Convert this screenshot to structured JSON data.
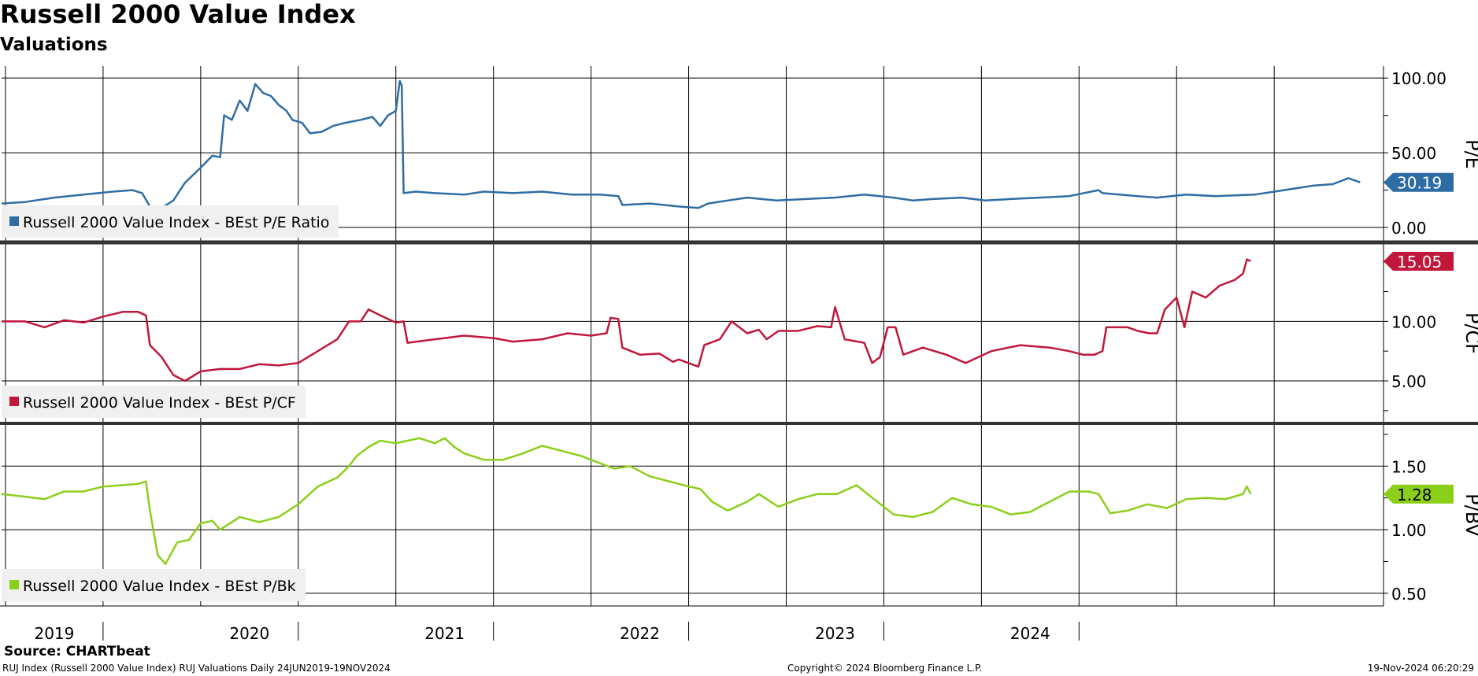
{
  "header": {
    "title": "Russell 2000 Value Index",
    "subtitle": "Valuations"
  },
  "footer": {
    "source": "Source: CHARTbeat",
    "description": "RUJ Index (Russell 2000 Value Index) RUJ Valuations  Daily 24JUN2019-19NOV2024",
    "copyright": "Copyright© 2024 Bloomberg Finance L.P.",
    "timestamp": "19-Nov-2024 06:20:29"
  },
  "chart_data": [
    {
      "type": "line",
      "ylabel": "P/E",
      "yticks": [
        0,
        50,
        100
      ],
      "tick_labels": [
        "0.00",
        "50.00",
        "100.00"
      ],
      "ylim": [
        -10,
        108
      ],
      "color": "#2e6da4",
      "last_value_label": "30.19",
      "last_value": 30.19,
      "series": [
        {
          "name": "Russell 2000 Value Index - BEst P/E Ratio",
          "points": [
            [
              2019.48,
              16
            ],
            [
              2019.6,
              17
            ],
            [
              2019.75,
              20
            ],
            [
              2019.9,
              22
            ],
            [
              2020.05,
              24
            ],
            [
              2020.15,
              25
            ],
            [
              2020.2,
              23
            ],
            [
              2020.24,
              14
            ],
            [
              2020.3,
              13
            ],
            [
              2020.36,
              18
            ],
            [
              2020.42,
              30
            ],
            [
              2020.5,
              40
            ],
            [
              2020.56,
              48
            ],
            [
              2020.6,
              47
            ],
            [
              2020.62,
              75
            ],
            [
              2020.66,
              72
            ],
            [
              2020.7,
              85
            ],
            [
              2020.74,
              78
            ],
            [
              2020.78,
              96
            ],
            [
              2020.82,
              90
            ],
            [
              2020.86,
              88
            ],
            [
              2020.9,
              82
            ],
            [
              2020.94,
              78
            ],
            [
              2020.97,
              72
            ],
            [
              2021.02,
              70
            ],
            [
              2021.06,
              63
            ],
            [
              2021.12,
              64
            ],
            [
              2021.18,
              68
            ],
            [
              2021.24,
              70
            ],
            [
              2021.32,
              72
            ],
            [
              2021.38,
              74
            ],
            [
              2021.42,
              68
            ],
            [
              2021.46,
              75
            ],
            [
              2021.5,
              78
            ],
            [
              2021.52,
              98
            ],
            [
              2021.53,
              95
            ],
            [
              2021.54,
              23
            ],
            [
              2021.6,
              24
            ],
            [
              2021.7,
              23
            ],
            [
              2021.85,
              22
            ],
            [
              2021.95,
              24
            ],
            [
              2022.1,
              23
            ],
            [
              2022.25,
              24
            ],
            [
              2022.4,
              22
            ],
            [
              2022.55,
              22
            ],
            [
              2022.64,
              21
            ],
            [
              2022.66,
              15
            ],
            [
              2022.8,
              16
            ],
            [
              2022.95,
              14
            ],
            [
              2023.05,
              13
            ],
            [
              2023.1,
              16
            ],
            [
              2023.2,
              18
            ],
            [
              2023.3,
              20
            ],
            [
              2023.45,
              18
            ],
            [
              2023.6,
              19
            ],
            [
              2023.75,
              20
            ],
            [
              2023.9,
              22
            ],
            [
              2024.05,
              20
            ],
            [
              2024.15,
              18
            ],
            [
              2024.25,
              19
            ],
            [
              2024.4,
              20
            ],
            [
              2024.52,
              18
            ],
            [
              2024.65,
              19
            ],
            [
              2024.8,
              20
            ],
            [
              2024.95,
              21
            ],
            [
              2025.1,
              25
            ],
            [
              2025.12,
              23
            ],
            [
              2025.3,
              21
            ],
            [
              2025.4,
              20
            ],
            [
              2025.55,
              22
            ],
            [
              2025.7,
              21
            ],
            [
              2025.9,
              22
            ],
            [
              2026.05,
              25
            ],
            [
              2026.2,
              28
            ],
            [
              2026.3,
              29
            ],
            [
              2026.38,
              33
            ],
            [
              2026.44,
              30.19
            ]
          ]
        }
      ]
    },
    {
      "type": "line",
      "ylabel": "P/CF",
      "yticks": [
        5,
        10
      ],
      "tick_labels": [
        "5.00",
        "10.00"
      ],
      "ylim": [
        1.5,
        16.5
      ],
      "color": "#c0173a",
      "last_value_label": "15.05",
      "last_value": 15.05,
      "series": [
        {
          "name": "Russell 2000 Value Index - BEst P/CF",
          "points": [
            [
              2019.48,
              10
            ],
            [
              2019.6,
              10
            ],
            [
              2019.7,
              9.5
            ],
            [
              2019.8,
              10.1
            ],
            [
              2019.9,
              9.9
            ],
            [
              2020.0,
              10.4
            ],
            [
              2020.1,
              10.8
            ],
            [
              2020.18,
              10.8
            ],
            [
              2020.22,
              10.5
            ],
            [
              2020.24,
              8
            ],
            [
              2020.3,
              7
            ],
            [
              2020.36,
              5.5
            ],
            [
              2020.42,
              5
            ],
            [
              2020.5,
              5.8
            ],
            [
              2020.6,
              6
            ],
            [
              2020.7,
              6
            ],
            [
              2020.8,
              6.4
            ],
            [
              2020.9,
              6.3
            ],
            [
              2021.0,
              6.5
            ],
            [
              2021.1,
              7.5
            ],
            [
              2021.2,
              8.5
            ],
            [
              2021.26,
              10
            ],
            [
              2021.32,
              10
            ],
            [
              2021.36,
              11
            ],
            [
              2021.42,
              10.5
            ],
            [
              2021.5,
              9.9
            ],
            [
              2021.54,
              10
            ],
            [
              2021.56,
              8.2
            ],
            [
              2021.7,
              8.5
            ],
            [
              2021.85,
              8.8
            ],
            [
              2022.0,
              8.6
            ],
            [
              2022.1,
              8.3
            ],
            [
              2022.25,
              8.5
            ],
            [
              2022.38,
              9
            ],
            [
              2022.5,
              8.8
            ],
            [
              2022.58,
              9
            ],
            [
              2022.6,
              10.3
            ],
            [
              2022.64,
              10.2
            ],
            [
              2022.66,
              7.8
            ],
            [
              2022.75,
              7.2
            ],
            [
              2022.85,
              7.3
            ],
            [
              2022.92,
              6.6
            ],
            [
              2022.95,
              6.8
            ],
            [
              2023.05,
              6.2
            ],
            [
              2023.08,
              8
            ],
            [
              2023.16,
              8.5
            ],
            [
              2023.22,
              10
            ],
            [
              2023.3,
              9
            ],
            [
              2023.36,
              9.3
            ],
            [
              2023.4,
              8.5
            ],
            [
              2023.46,
              9.2
            ],
            [
              2023.56,
              9.2
            ],
            [
              2023.66,
              9.6
            ],
            [
              2023.73,
              9.5
            ],
            [
              2023.75,
              11.2
            ],
            [
              2023.8,
              8.5
            ],
            [
              2023.9,
              8.2
            ],
            [
              2023.94,
              6.5
            ],
            [
              2023.98,
              7
            ],
            [
              2024.02,
              9.5
            ],
            [
              2024.06,
              9.5
            ],
            [
              2024.1,
              7.2
            ],
            [
              2024.2,
              7.8
            ],
            [
              2024.32,
              7.2
            ],
            [
              2024.42,
              6.5
            ],
            [
              2024.55,
              7.5
            ],
            [
              2024.7,
              8
            ],
            [
              2024.85,
              7.8
            ],
            [
              2024.95,
              7.5
            ],
            [
              2025.02,
              7.2
            ],
            [
              2025.08,
              7.2
            ],
            [
              2025.12,
              7.5
            ],
            [
              2025.14,
              9.5
            ],
            [
              2025.25,
              9.5
            ],
            [
              2025.3,
              9.2
            ],
            [
              2025.36,
              9
            ],
            [
              2025.4,
              9
            ],
            [
              2025.44,
              11
            ],
            [
              2025.5,
              12
            ],
            [
              2025.54,
              9.5
            ],
            [
              2025.58,
              12.5
            ],
            [
              2025.65,
              12
            ],
            [
              2025.72,
              13
            ],
            [
              2025.8,
              13.5
            ],
            [
              2025.84,
              14
            ],
            [
              2025.86,
              15.2
            ],
            [
              2025.88,
              15.05
            ]
          ]
        }
      ]
    },
    {
      "type": "line",
      "ylabel": "P/BV",
      "yticks": [
        0.5,
        1.0,
        1.5
      ],
      "tick_labels": [
        "0.50",
        "1.00",
        "1.50"
      ],
      "ylim": [
        0.4,
        1.83
      ],
      "color": "#8ccf1a",
      "last_value_label": "1.28",
      "last_value": 1.28,
      "series": [
        {
          "name": "Russell 2000 Value Index - BEst P/Bk",
          "points": [
            [
              2019.48,
              1.28
            ],
            [
              2019.6,
              1.26
            ],
            [
              2019.7,
              1.24
            ],
            [
              2019.8,
              1.3
            ],
            [
              2019.9,
              1.3
            ],
            [
              2020.0,
              1.34
            ],
            [
              2020.1,
              1.35
            ],
            [
              2020.18,
              1.36
            ],
            [
              2020.22,
              1.38
            ],
            [
              2020.24,
              1.15
            ],
            [
              2020.28,
              0.8
            ],
            [
              2020.32,
              0.73
            ],
            [
              2020.38,
              0.9
            ],
            [
              2020.44,
              0.92
            ],
            [
              2020.5,
              1.05
            ],
            [
              2020.56,
              1.07
            ],
            [
              2020.6,
              1.0
            ],
            [
              2020.7,
              1.1
            ],
            [
              2020.8,
              1.06
            ],
            [
              2020.9,
              1.1
            ],
            [
              2021.0,
              1.2
            ],
            [
              2021.1,
              1.34
            ],
            [
              2021.2,
              1.41
            ],
            [
              2021.26,
              1.5
            ],
            [
              2021.3,
              1.58
            ],
            [
              2021.36,
              1.65
            ],
            [
              2021.42,
              1.7
            ],
            [
              2021.5,
              1.68
            ],
            [
              2021.56,
              1.7
            ],
            [
              2021.62,
              1.72
            ],
            [
              2021.7,
              1.68
            ],
            [
              2021.75,
              1.72
            ],
            [
              2021.8,
              1.65
            ],
            [
              2021.85,
              1.6
            ],
            [
              2021.95,
              1.55
            ],
            [
              2022.05,
              1.55
            ],
            [
              2022.15,
              1.6
            ],
            [
              2022.25,
              1.66
            ],
            [
              2022.35,
              1.62
            ],
            [
              2022.45,
              1.58
            ],
            [
              2022.55,
              1.52
            ],
            [
              2022.62,
              1.48
            ],
            [
              2022.7,
              1.5
            ],
            [
              2022.8,
              1.42
            ],
            [
              2022.9,
              1.38
            ],
            [
              2023.0,
              1.34
            ],
            [
              2023.06,
              1.32
            ],
            [
              2023.12,
              1.22
            ],
            [
              2023.2,
              1.15
            ],
            [
              2023.3,
              1.22
            ],
            [
              2023.36,
              1.28
            ],
            [
              2023.46,
              1.18
            ],
            [
              2023.56,
              1.24
            ],
            [
              2023.66,
              1.28
            ],
            [
              2023.76,
              1.28
            ],
            [
              2023.86,
              1.35
            ],
            [
              2023.95,
              1.24
            ],
            [
              2024.05,
              1.12
            ],
            [
              2024.15,
              1.1
            ],
            [
              2024.25,
              1.14
            ],
            [
              2024.35,
              1.25
            ],
            [
              2024.45,
              1.2
            ],
            [
              2024.55,
              1.18
            ],
            [
              2024.65,
              1.12
            ],
            [
              2024.75,
              1.14
            ],
            [
              2024.85,
              1.22
            ],
            [
              2024.95,
              1.3
            ],
            [
              2025.05,
              1.3
            ],
            [
              2025.1,
              1.28
            ],
            [
              2025.16,
              1.13
            ],
            [
              2025.25,
              1.15
            ],
            [
              2025.35,
              1.2
            ],
            [
              2025.45,
              1.17
            ],
            [
              2025.55,
              1.24
            ],
            [
              2025.65,
              1.25
            ],
            [
              2025.75,
              1.24
            ],
            [
              2025.84,
              1.28
            ],
            [
              2025.86,
              1.34
            ],
            [
              2025.88,
              1.28
            ]
          ]
        }
      ]
    }
  ],
  "x_axis": {
    "labels": [
      "2019",
      "2020",
      "2021",
      "2022",
      "2023",
      "2024"
    ],
    "label_positions": [
      2019.75,
      2020.75,
      2021.75,
      2022.75,
      2023.75,
      2024.75
    ]
  }
}
